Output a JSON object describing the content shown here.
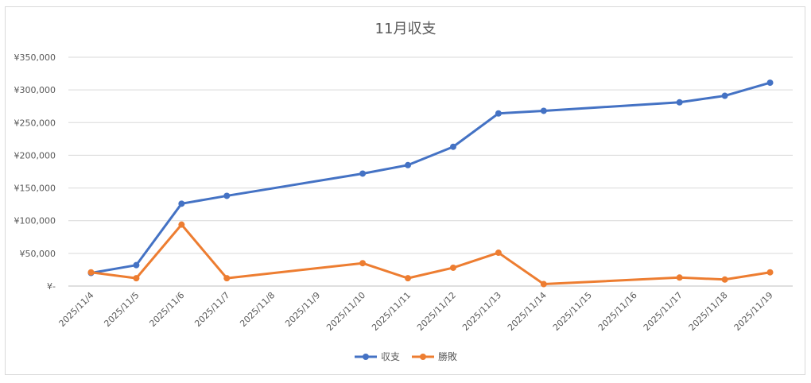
{
  "chart_data": {
    "type": "line",
    "title": "11月収支",
    "xlabel": "",
    "ylabel": "",
    "y_ticks": [
      "¥-",
      "¥50,000",
      "¥100,000",
      "¥150,000",
      "¥200,000",
      "¥250,000",
      "¥300,000",
      "¥350,000"
    ],
    "ylim": [
      0,
      350000
    ],
    "categories": [
      "2025/11/4",
      "2025/11/5",
      "2025/11/6",
      "2025/11/7",
      "2025/11/8",
      "2025/11/9",
      "2025/11/10",
      "2025/11/11",
      "2025/11/12",
      "2025/11/13",
      "2025/11/14",
      "2025/11/15",
      "2025/11/16",
      "2025/11/17",
      "2025/11/18",
      "2025/11/19"
    ],
    "grid": true,
    "legend_position": "bottom",
    "series": [
      {
        "name": "収支",
        "color": "#4472c4",
        "values": [
          20000,
          32000,
          126000,
          138000,
          null,
          null,
          172000,
          185000,
          213000,
          264000,
          268000,
          null,
          null,
          281000,
          291000,
          311000
        ]
      },
      {
        "name": "勝敗",
        "color": "#ed7d31",
        "values": [
          21000,
          12000,
          94000,
          12000,
          null,
          null,
          35000,
          12000,
          28000,
          51000,
          3000,
          null,
          null,
          13000,
          10000,
          21000
        ]
      }
    ]
  }
}
